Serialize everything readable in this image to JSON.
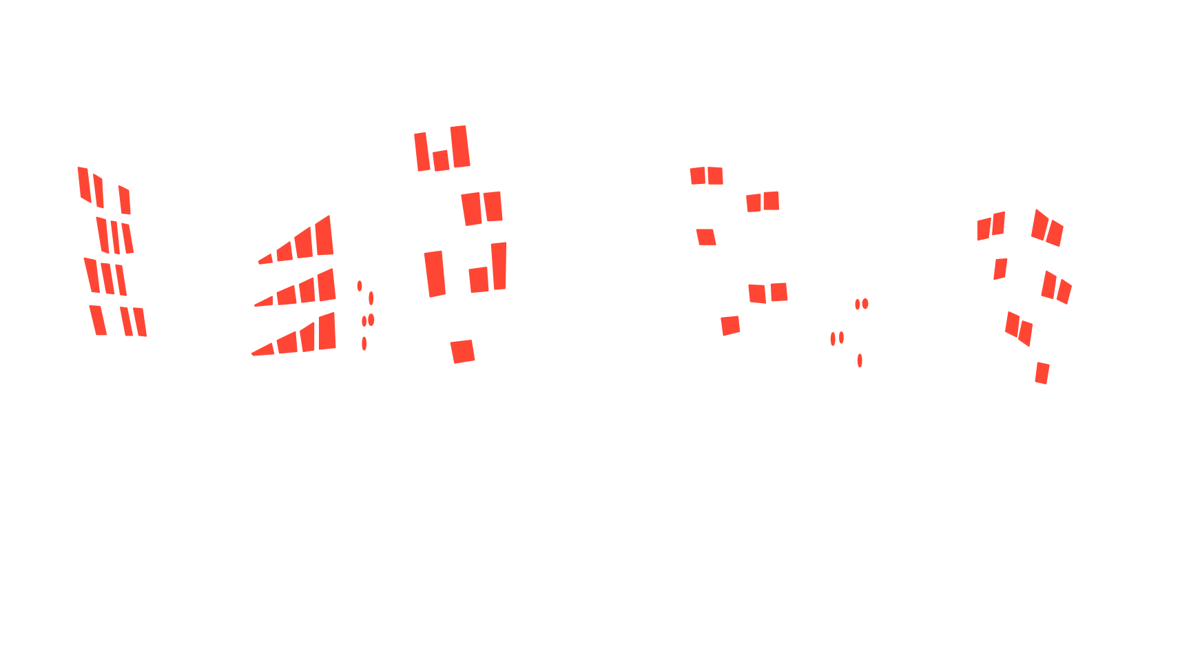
{
  "image": {
    "background_color": "#ffffff",
    "mask_color": "#ff4634",
    "content": "segmentation-mask-window-regions"
  }
}
